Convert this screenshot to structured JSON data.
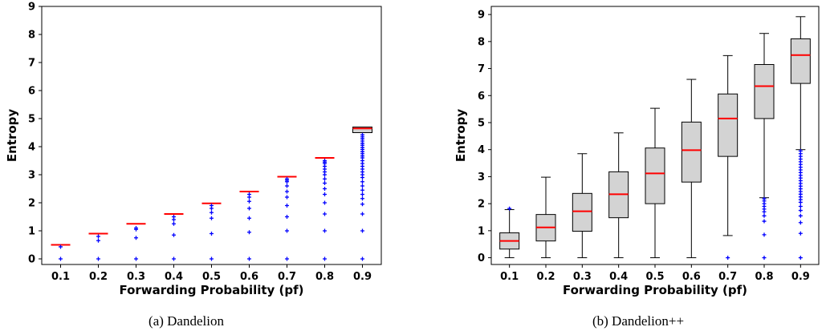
{
  "colors": {
    "box_fill": "#d3d3d3",
    "box_edge": "#000000",
    "median": "#ff0000",
    "flier": "#0000ff"
  },
  "chart_data": [
    {
      "type": "box",
      "caption": "(a) Dandelion",
      "xlabel": "Forwarding Probability (pf)",
      "ylabel": "Entropy",
      "ylim": [
        -0.2,
        9.0
      ],
      "yticks": [
        0,
        1,
        2,
        3,
        4,
        5,
        6,
        7,
        8,
        9
      ],
      "categories": [
        "0.1",
        "0.2",
        "0.3",
        "0.4",
        "0.5",
        "0.6",
        "0.7",
        "0.8",
        "0.9"
      ],
      "grid": false,
      "boxes": [
        {
          "q1": 0.5,
          "median": 0.5,
          "q3": 0.5,
          "whislo": 0.5,
          "whishi": 0.5,
          "fliers": [
            0.43,
            0.0
          ]
        },
        {
          "q1": 0.9,
          "median": 0.9,
          "q3": 0.9,
          "whislo": 0.9,
          "whishi": 0.9,
          "fliers": [
            0.8,
            0.65,
            0.0
          ]
        },
        {
          "q1": 1.25,
          "median": 1.25,
          "q3": 1.25,
          "whislo": 1.25,
          "whishi": 1.25,
          "fliers": [
            1.1,
            1.05,
            0.75,
            0.0
          ]
        },
        {
          "q1": 1.6,
          "median": 1.6,
          "q3": 1.6,
          "whislo": 1.6,
          "whishi": 1.6,
          "fliers": [
            1.5,
            1.4,
            1.25,
            0.85,
            0.0
          ]
        },
        {
          "q1": 1.98,
          "median": 1.98,
          "q3": 1.98,
          "whislo": 1.98,
          "whishi": 1.98,
          "fliers": [
            1.9,
            1.8,
            1.65,
            1.45,
            0.9,
            0.0
          ]
        },
        {
          "q1": 2.4,
          "median": 2.4,
          "q3": 2.4,
          "whislo": 2.4,
          "whishi": 2.4,
          "fliers": [
            2.3,
            2.2,
            2.05,
            1.8,
            1.45,
            0.95,
            0.0
          ]
        },
        {
          "q1": 2.93,
          "median": 2.93,
          "q3": 2.93,
          "whislo": 2.93,
          "whishi": 2.93,
          "fliers": [
            2.85,
            2.8,
            2.75,
            2.6,
            2.4,
            2.2,
            1.9,
            1.5,
            1.0,
            0.0
          ]
        },
        {
          "q1": 3.6,
          "median": 3.6,
          "q3": 3.6,
          "whislo": 3.6,
          "whishi": 3.6,
          "fliers": [
            3.5,
            3.45,
            3.4,
            3.3,
            3.2,
            3.1,
            3.0,
            2.85,
            2.7,
            2.5,
            2.3,
            2.0,
            1.6,
            1.0,
            0.0
          ]
        },
        {
          "q1": 4.58,
          "median": 4.65,
          "q3": 4.7,
          "whislo": 4.5,
          "whishi": 4.7,
          "fliers": [
            4.42,
            4.35,
            4.28,
            4.2,
            4.12,
            4.05,
            3.97,
            3.9,
            3.82,
            3.75,
            3.67,
            3.6,
            3.5,
            3.4,
            3.3,
            3.2,
            3.1,
            3.0,
            2.9,
            2.75,
            2.6,
            2.45,
            2.3,
            2.15,
            1.95,
            1.6,
            1.0,
            0.0
          ]
        }
      ]
    },
    {
      "type": "box",
      "caption": "(b) Dandelion++",
      "xlabel": "Forwarding Probability (pf)",
      "ylabel": "Entropy",
      "ylim": [
        -0.25,
        9.3
      ],
      "yticks": [
        0,
        1,
        2,
        3,
        4,
        5,
        6,
        7,
        8,
        9
      ],
      "categories": [
        "0.1",
        "0.2",
        "0.3",
        "0.4",
        "0.5",
        "0.6",
        "0.7",
        "0.8",
        "0.9"
      ],
      "grid": false,
      "boxes": [
        {
          "q1": 0.32,
          "median": 0.62,
          "q3": 0.92,
          "whislo": 0.0,
          "whishi": 1.78,
          "fliers": [
            1.82
          ]
        },
        {
          "q1": 0.62,
          "median": 1.12,
          "q3": 1.6,
          "whislo": 0.0,
          "whishi": 2.98,
          "fliers": []
        },
        {
          "q1": 0.98,
          "median": 1.72,
          "q3": 2.38,
          "whislo": 0.0,
          "whishi": 3.85,
          "fliers": []
        },
        {
          "q1": 1.48,
          "median": 2.35,
          "q3": 3.18,
          "whislo": 0.0,
          "whishi": 4.62,
          "fliers": []
        },
        {
          "q1": 2.0,
          "median": 3.12,
          "q3": 4.06,
          "whislo": 0.0,
          "whishi": 5.53,
          "fliers": []
        },
        {
          "q1": 2.8,
          "median": 3.98,
          "q3": 5.02,
          "whislo": 0.0,
          "whishi": 6.6,
          "fliers": []
        },
        {
          "q1": 3.75,
          "median": 5.15,
          "q3": 6.06,
          "whislo": 0.82,
          "whishi": 7.48,
          "fliers": [
            0.0
          ]
        },
        {
          "q1": 5.15,
          "median": 6.35,
          "q3": 7.15,
          "whislo": 2.22,
          "whishi": 8.3,
          "fliers": [
            2.18,
            2.1,
            2.0,
            1.9,
            1.8,
            1.7,
            1.55,
            1.35,
            0.85,
            0.0
          ]
        },
        {
          "q1": 6.45,
          "median": 7.5,
          "q3": 8.1,
          "whislo": 4.0,
          "whishi": 8.92,
          "fliers": [
            3.95,
            3.85,
            3.75,
            3.65,
            3.55,
            3.45,
            3.35,
            3.25,
            3.15,
            3.05,
            2.95,
            2.85,
            2.75,
            2.65,
            2.55,
            2.45,
            2.35,
            2.25,
            2.15,
            2.05,
            1.9,
            1.75,
            1.55,
            1.3,
            0.9,
            0.0
          ]
        }
      ]
    }
  ]
}
